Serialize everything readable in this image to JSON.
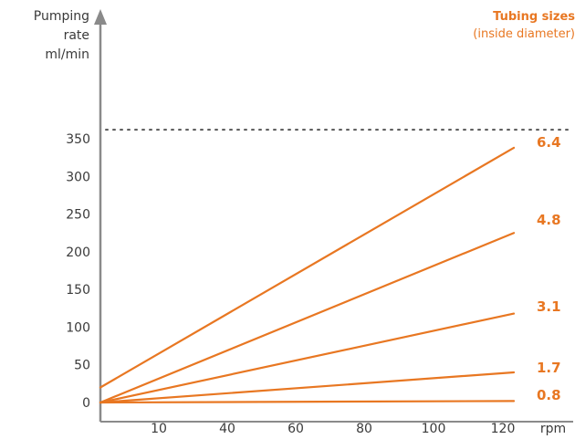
{
  "chart_data": {
    "type": "line",
    "ylabel_lines": [
      "Pumping",
      "rate",
      "ml/min"
    ],
    "xlabel": "rpm",
    "y_ticks": [
      0,
      50,
      100,
      150,
      200,
      250,
      300,
      350
    ],
    "x_ticks": [
      "10",
      "40",
      "60",
      "80",
      "100",
      "120"
    ],
    "ylim": [
      0,
      350
    ],
    "max_rate_dotted": 362,
    "legend": {
      "title": "Tubing sizes",
      "subtitle": "(inside diameter)"
    },
    "series": [
      {
        "name": "6.4",
        "start": 20,
        "end": 338
      },
      {
        "name": "4.8",
        "start": 0,
        "end": 225
      },
      {
        "name": "3.1",
        "start": 0,
        "end": 118
      },
      {
        "name": "1.7",
        "start": 0,
        "end": 40
      },
      {
        "name": "0.8",
        "start": 0,
        "end": 2
      }
    ]
  },
  "colors": {
    "accent": "#E87722",
    "axis": "#8a8a8a",
    "text": "#3a3a3a"
  }
}
